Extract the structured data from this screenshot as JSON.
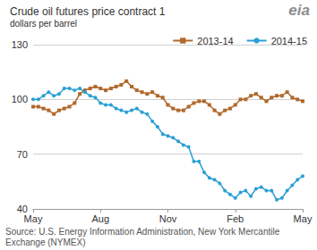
{
  "chart_data": {
    "type": "line",
    "title": "Crude oil futures price contract 1",
    "subtitle": "dollars per barrel",
    "logo": "eia",
    "source": "Source: U.S. Energy Information Administration, New York Mercantile Exchange (NYMEX)",
    "categories": [
      "May",
      null,
      null,
      null,
      null,
      null,
      null,
      null,
      null,
      null,
      null,
      null,
      null,
      "Aug",
      null,
      null,
      null,
      null,
      null,
      null,
      null,
      null,
      null,
      null,
      null,
      null,
      "Nov",
      null,
      null,
      null,
      null,
      null,
      null,
      null,
      null,
      null,
      null,
      null,
      null,
      "Feb",
      null,
      null,
      null,
      null,
      null,
      null,
      null,
      null,
      null,
      null,
      null,
      null,
      "May"
    ],
    "series": [
      {
        "name": "2013-14",
        "color": "#b0692c",
        "marker": "square",
        "values": [
          96,
          96,
          95,
          94,
          92,
          94,
          95,
          96,
          98,
          103,
          105,
          106,
          107,
          106,
          105,
          106,
          107,
          108,
          110,
          107,
          105,
          104,
          103,
          104,
          102,
          101,
          97,
          95,
          94,
          94,
          96,
          98,
          99,
          99,
          97,
          94,
          92,
          94,
          95,
          97,
          100,
          100,
          102,
          103,
          101,
          99,
          101,
          102,
          102,
          104,
          101,
          100,
          99
        ]
      },
      {
        "name": "2014-15",
        "color": "#2a9fd6",
        "marker": "circle",
        "values": [
          100,
          100,
          102,
          104,
          102,
          103,
          106,
          106,
          105,
          106,
          104,
          102,
          101,
          98,
          97,
          97,
          95,
          94,
          93,
          94,
          95,
          93,
          92,
          88,
          85,
          81,
          80,
          79,
          77,
          75,
          74,
          66,
          66,
          60,
          57,
          56,
          54,
          50,
          48,
          46,
          49,
          50,
          47,
          51,
          52,
          50,
          50,
          45,
          46,
          50,
          53,
          56,
          58
        ]
      }
    ],
    "ylim": [
      40,
      130
    ],
    "yticks": [
      40,
      70,
      100,
      130
    ],
    "grid": true,
    "legend": "top-right"
  }
}
